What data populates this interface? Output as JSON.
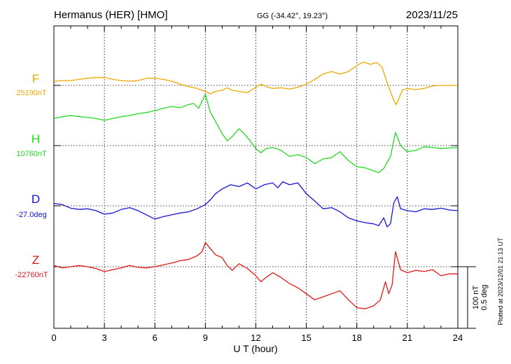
{
  "header": {
    "station": "Hermanus (HER)  [HMO]",
    "coords": "GG (-34.42°,  19.23°)",
    "date": "2023/11/25"
  },
  "footer": {
    "plotted_note": "Plotted at 2023/12/01 21:13 UT"
  },
  "chart_data": {
    "type": "line",
    "title": "Hermanus (HER)  [HMO]",
    "xlabel": "U T (hour)",
    "xlim": [
      0,
      24
    ],
    "x_ticks": [
      0,
      3,
      6,
      9,
      12,
      15,
      18,
      21,
      24
    ],
    "x_tick_labels": [
      "0",
      "3",
      "6",
      "9",
      "12",
      "15",
      "18",
      "21",
      "24"
    ],
    "grid": true,
    "scale_bar": {
      "line1": "100 nT",
      "line2": "0.5 deg"
    },
    "series": [
      {
        "name": "F",
        "baseline_label": "25190nT",
        "color": "#f0a800",
        "unit": "nT",
        "points": [
          [
            0,
            7
          ],
          [
            0.5,
            8
          ],
          [
            1,
            8
          ],
          [
            1.5,
            10
          ],
          [
            2,
            12
          ],
          [
            2.5,
            13
          ],
          [
            3,
            13
          ],
          [
            3.5,
            10
          ],
          [
            4,
            8
          ],
          [
            4.5,
            7
          ],
          [
            5,
            8
          ],
          [
            5.5,
            12
          ],
          [
            6,
            12
          ],
          [
            6.5,
            10
          ],
          [
            7,
            7
          ],
          [
            7.5,
            2
          ],
          [
            8,
            -2
          ],
          [
            8.5,
            -5
          ],
          [
            9,
            -10
          ],
          [
            9.3,
            -14
          ],
          [
            9.6,
            -10
          ],
          [
            10,
            -8
          ],
          [
            10.3,
            -4
          ],
          [
            10.6,
            -8
          ],
          [
            11,
            -10
          ],
          [
            11.5,
            -12
          ],
          [
            12,
            -3
          ],
          [
            12.3,
            2
          ],
          [
            12.7,
            -3
          ],
          [
            13,
            -5
          ],
          [
            13.5,
            -4
          ],
          [
            14,
            -6
          ],
          [
            14.5,
            -3
          ],
          [
            15,
            2
          ],
          [
            15.5,
            10
          ],
          [
            16,
            19
          ],
          [
            16.5,
            23
          ],
          [
            17,
            19
          ],
          [
            17.5,
            23
          ],
          [
            18,
            33
          ],
          [
            18.4,
            39
          ],
          [
            18.8,
            35
          ],
          [
            19.2,
            38
          ],
          [
            19.5,
            30
          ],
          [
            19.8,
            5
          ],
          [
            20,
            -10
          ],
          [
            20.2,
            -25
          ],
          [
            20.35,
            -32
          ],
          [
            20.5,
            -22
          ],
          [
            20.7,
            -8
          ],
          [
            21,
            -5
          ],
          [
            21.5,
            -7
          ],
          [
            22,
            -5
          ],
          [
            22.5,
            -1
          ],
          [
            23,
            0
          ],
          [
            23.5,
            0
          ],
          [
            24,
            0
          ]
        ]
      },
      {
        "name": "H",
        "baseline_label": "10760nT",
        "color": "#22d822",
        "unit": "nT",
        "points": [
          [
            0,
            45
          ],
          [
            0.5,
            48
          ],
          [
            1,
            50
          ],
          [
            1.5,
            48
          ],
          [
            2,
            47
          ],
          [
            2.5,
            45
          ],
          [
            3,
            42
          ],
          [
            3.5,
            45
          ],
          [
            4,
            48
          ],
          [
            4.5,
            50
          ],
          [
            5,
            53
          ],
          [
            5.5,
            55
          ],
          [
            6,
            58
          ],
          [
            6.5,
            62
          ],
          [
            7,
            65
          ],
          [
            7.5,
            63
          ],
          [
            8,
            68
          ],
          [
            8.3,
            70
          ],
          [
            8.6,
            62
          ],
          [
            9,
            85
          ],
          [
            9.3,
            55
          ],
          [
            9.6,
            40
          ],
          [
            10,
            20
          ],
          [
            10.3,
            8
          ],
          [
            10.6,
            15
          ],
          [
            11,
            28
          ],
          [
            11.3,
            20
          ],
          [
            11.6,
            10
          ],
          [
            12,
            -5
          ],
          [
            12.3,
            -12
          ],
          [
            12.6,
            -5
          ],
          [
            13,
            -3
          ],
          [
            13.5,
            -8
          ],
          [
            14,
            -18
          ],
          [
            14.5,
            -15
          ],
          [
            15,
            -20
          ],
          [
            15.5,
            -30
          ],
          [
            16,
            -22
          ],
          [
            16.5,
            -20
          ],
          [
            17,
            -10
          ],
          [
            17.5,
            -25
          ],
          [
            18,
            -35
          ],
          [
            18.5,
            -37
          ],
          [
            19,
            -42
          ],
          [
            19.3,
            -45
          ],
          [
            19.6,
            -38
          ],
          [
            20,
            -18
          ],
          [
            20.3,
            22
          ],
          [
            20.6,
            0
          ],
          [
            21,
            -10
          ],
          [
            21.5,
            -8
          ],
          [
            22,
            -2
          ],
          [
            22.5,
            -3
          ],
          [
            23,
            -5
          ],
          [
            23.5,
            -4
          ],
          [
            24,
            -3
          ]
        ]
      },
      {
        "name": "D",
        "baseline_label": "-27.0deg",
        "color": "#1414d8",
        "unit": "deg",
        "points": [
          [
            0,
            4
          ],
          [
            0.5,
            2
          ],
          [
            1,
            -4
          ],
          [
            1.5,
            -6
          ],
          [
            2,
            -5
          ],
          [
            2.5,
            -8
          ],
          [
            3,
            -14
          ],
          [
            3.5,
            -12
          ],
          [
            4,
            -6
          ],
          [
            4.5,
            -3
          ],
          [
            5,
            -8
          ],
          [
            5.5,
            -15
          ],
          [
            6,
            -22
          ],
          [
            6.5,
            -18
          ],
          [
            7,
            -15
          ],
          [
            7.5,
            -12
          ],
          [
            8,
            -10
          ],
          [
            8.5,
            -5
          ],
          [
            9,
            2
          ],
          [
            9.3,
            10
          ],
          [
            9.6,
            20
          ],
          [
            10,
            28
          ],
          [
            10.5,
            35
          ],
          [
            11,
            32
          ],
          [
            11.5,
            38
          ],
          [
            12,
            28
          ],
          [
            12.5,
            35
          ],
          [
            13,
            38
          ],
          [
            13.3,
            30
          ],
          [
            13.6,
            40
          ],
          [
            14,
            35
          ],
          [
            14.5,
            38
          ],
          [
            15,
            20
          ],
          [
            15.5,
            8
          ],
          [
            16,
            -5
          ],
          [
            16.5,
            -3
          ],
          [
            17,
            -10
          ],
          [
            17.5,
            -20
          ],
          [
            18,
            -25
          ],
          [
            18.5,
            -28
          ],
          [
            19,
            -30
          ],
          [
            19.3,
            -33
          ],
          [
            19.6,
            -20
          ],
          [
            19.8,
            -35
          ],
          [
            20,
            -30
          ],
          [
            20.2,
            5
          ],
          [
            20.4,
            15
          ],
          [
            20.6,
            -5
          ],
          [
            21,
            -8
          ],
          [
            21.5,
            -10
          ],
          [
            22,
            -5
          ],
          [
            22.5,
            -6
          ],
          [
            23,
            -4
          ],
          [
            23.5,
            -7
          ],
          [
            24,
            -8
          ]
        ]
      },
      {
        "name": "Z",
        "baseline_label": "-22760nT",
        "color": "#e01818",
        "unit": "nT",
        "points": [
          [
            0,
            2
          ],
          [
            0.5,
            -2
          ],
          [
            1,
            0
          ],
          [
            1.5,
            2
          ],
          [
            2,
            0
          ],
          [
            2.5,
            -3
          ],
          [
            3,
            -8
          ],
          [
            3.5,
            -5
          ],
          [
            4,
            -2
          ],
          [
            4.5,
            2
          ],
          [
            5,
            -1
          ],
          [
            5.5,
            -2
          ],
          [
            6,
            0
          ],
          [
            6.5,
            3
          ],
          [
            7,
            6
          ],
          [
            7.5,
            10
          ],
          [
            8,
            12
          ],
          [
            8.5,
            18
          ],
          [
            8.8,
            25
          ],
          [
            9,
            40
          ],
          [
            9.3,
            30
          ],
          [
            9.6,
            20
          ],
          [
            10,
            15
          ],
          [
            10.3,
            2
          ],
          [
            10.6,
            -6
          ],
          [
            11,
            5
          ],
          [
            11.5,
            -3
          ],
          [
            12,
            -15
          ],
          [
            12.3,
            -25
          ],
          [
            12.6,
            -18
          ],
          [
            13,
            -10
          ],
          [
            13.5,
            -18
          ],
          [
            14,
            -28
          ],
          [
            14.5,
            -35
          ],
          [
            15,
            -45
          ],
          [
            15.5,
            -55
          ],
          [
            16,
            -50
          ],
          [
            16.5,
            -45
          ],
          [
            17,
            -40
          ],
          [
            17.5,
            -55
          ],
          [
            18,
            -68
          ],
          [
            18.5,
            -70
          ],
          [
            19,
            -65
          ],
          [
            19.4,
            -55
          ],
          [
            19.7,
            -25
          ],
          [
            19.9,
            -45
          ],
          [
            20.1,
            -30
          ],
          [
            20.3,
            25
          ],
          [
            20.6,
            -5
          ],
          [
            21,
            -10
          ],
          [
            21.5,
            -6
          ],
          [
            22,
            -8
          ],
          [
            22.5,
            -5
          ],
          [
            23,
            -15
          ],
          [
            23.5,
            -12
          ],
          [
            24,
            -12
          ]
        ]
      }
    ]
  }
}
